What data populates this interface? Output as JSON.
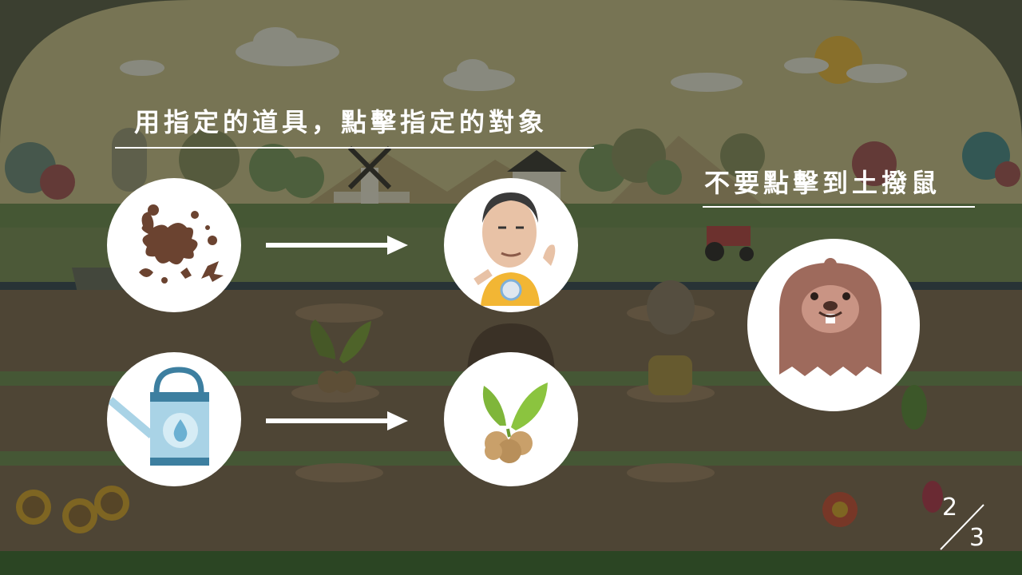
{
  "instructions": {
    "title": "用指定的道具，點擊指定的對象",
    "warning": "不要點擊到土撥鼠"
  },
  "rules": [
    {
      "tool": "mud-splatter",
      "target": "grandpa-character"
    },
    {
      "tool": "watering-can",
      "target": "sprout-plant"
    }
  ],
  "avoid": "groundhog",
  "pagination": {
    "current": "2",
    "total": "3"
  }
}
